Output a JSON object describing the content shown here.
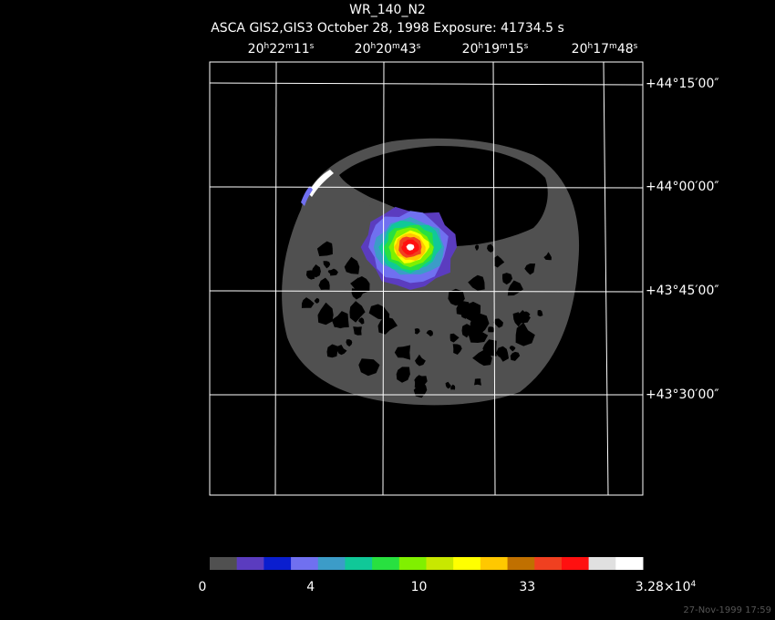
{
  "header": {
    "title": "WR_140_N2",
    "subtitle": "ASCA GIS2,GIS3 October 28, 1998 Exposure: 41734.5 s"
  },
  "ra_labels": [
    [
      {
        "text": "20"
      },
      {
        "text": "h",
        "sup": true
      },
      {
        "text": "22"
      },
      {
        "text": "m",
        "sup": true
      },
      {
        "text": "11"
      },
      {
        "text": "s",
        "sup": true
      }
    ],
    [
      {
        "text": "20"
      },
      {
        "text": "h",
        "sup": true
      },
      {
        "text": "20"
      },
      {
        "text": "m",
        "sup": true
      },
      {
        "text": "43"
      },
      {
        "text": "s",
        "sup": true
      }
    ],
    [
      {
        "text": "20"
      },
      {
        "text": "h",
        "sup": true
      },
      {
        "text": "19"
      },
      {
        "text": "m",
        "sup": true
      },
      {
        "text": "15"
      },
      {
        "text": "s",
        "sup": true
      }
    ],
    [
      {
        "text": "20"
      },
      {
        "text": "h",
        "sup": true
      },
      {
        "text": "17"
      },
      {
        "text": "m",
        "sup": true
      },
      {
        "text": "48"
      },
      {
        "text": "s",
        "sup": true
      }
    ]
  ],
  "dec_labels": [
    "+44°15′00″",
    "+44°00′00″",
    "+43°45′00″",
    "+43°30′00″"
  ],
  "colorbar": {
    "colors": [
      "#505050",
      "#5b3cbf",
      "#0a1ecf",
      "#7070f0",
      "#3c9cc8",
      "#10c898",
      "#28e040",
      "#80f000",
      "#c8e800",
      "#ffff00",
      "#ffc800",
      "#c07000",
      "#f04020",
      "#ff1010",
      "#e0e0e0",
      "#ffffff"
    ],
    "labels": [
      [
        {
          "text": "0"
        }
      ],
      [
        {
          "text": "4"
        }
      ],
      [
        {
          "text": "10"
        }
      ],
      [
        {
          "text": "33"
        }
      ],
      [
        {
          "text": "3.28×10"
        },
        {
          "text": "4",
          "sup": true
        }
      ]
    ]
  },
  "footer": {
    "timestamp": "27-Nov-1999 17:59"
  }
}
